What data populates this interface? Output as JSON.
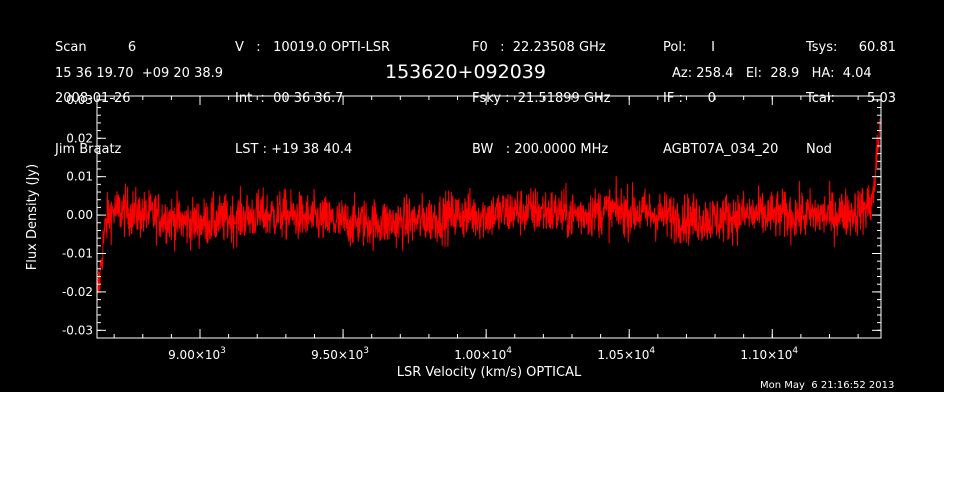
{
  "header": {
    "col1": [
      "Scan          6",
      "2008-01-26",
      "Jim Braatz"
    ],
    "col2": [
      "V   :   10019.0 OPTI-LSR",
      "Int  :  00 36 36.7",
      "LST : +19 38 40.4"
    ],
    "col3": [
      "F0   :  22.23508 GHz",
      "Fsky :  21.51899 GHz",
      "BW   : 200.0000 MHz"
    ],
    "col4": [
      "Pol:      I",
      "IF :      0",
      "AGBT07A_034_20"
    ],
    "col5_labels": [
      "Tsys:",
      "Tcal:",
      "Nod"
    ],
    "col5_values": [
      "60.81",
      "5.03",
      ""
    ],
    "coords": "15 36 19.70  +09 20 38.9",
    "source": "153620+092039",
    "azelha": "Az: 258.4   El:  28.9   HA:  4.04"
  },
  "timestamp": "Mon May  6 21:16:52 2013",
  "colors": {
    "background": "#000000",
    "trace": "#ff0000",
    "axes": "#ffffff"
  },
  "chart_data": {
    "type": "line",
    "xlabel": "LSR Velocity (km/s) OPTICAL",
    "ylabel": "Flux Density (Jy)",
    "xlim": [
      8640,
      11380
    ],
    "ylim": [
      -0.032,
      0.031
    ],
    "yticks": [
      -0.03,
      -0.02,
      -0.01,
      0.0,
      0.01,
      0.02,
      0.03
    ],
    "ytick_labels": [
      "-0.03",
      "-0.02",
      "-0.01",
      "0.00",
      "0.01",
      "0.02",
      "0.03"
    ],
    "xticks": [
      9000,
      9500,
      10000,
      10500,
      11000
    ],
    "xtick_mantissa": [
      "9.00×10",
      "9.50×10",
      "1.00×10",
      "1.05×10",
      "1.10×10"
    ],
    "xtick_exponent": [
      "3",
      "3",
      "4",
      "4",
      "4"
    ],
    "grid": false,
    "series": [
      {
        "x": [
          8640,
          8650,
          8660,
          8670,
          8680,
          8700,
          8750,
          8800,
          8850,
          8900,
          8950,
          9000,
          9100,
          9200,
          9300,
          9400,
          9500,
          9600,
          9700,
          9800,
          9900,
          10000,
          10100,
          10200,
          10300,
          10400,
          10500,
          10600,
          10700,
          10800,
          10900,
          11000,
          11100,
          11200,
          11300,
          11330,
          11345,
          11355,
          11362,
          11370,
          11376
        ],
        "y": [
          -0.021,
          -0.016,
          -0.008,
          -0.003,
          0.0,
          0.001,
          0.001,
          0.0,
          0.0,
          -0.001,
          -0.002,
          -0.002,
          -0.001,
          0.0,
          0.0,
          -0.001,
          -0.002,
          -0.002,
          -0.002,
          -0.001,
          0.0,
          0.0,
          0.001,
          0.001,
          0.0,
          0.001,
          0.001,
          0.0,
          -0.001,
          -0.001,
          0.0,
          0.0,
          0.0,
          0.0,
          0.001,
          0.002,
          0.003,
          0.006,
          0.012,
          0.018,
          0.024
        ],
        "noise_jy": 0.0042
      }
    ]
  }
}
